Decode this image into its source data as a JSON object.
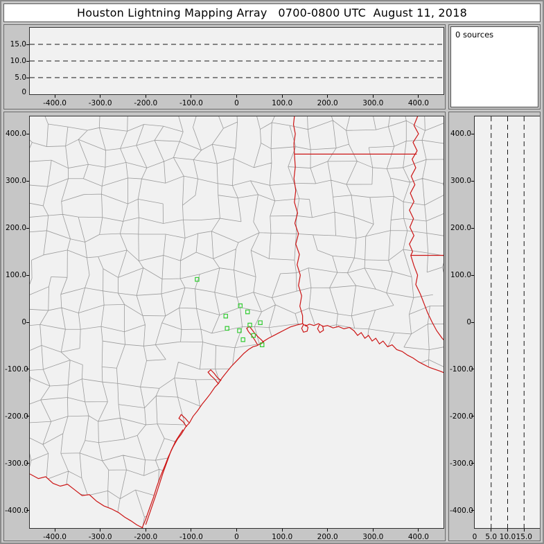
{
  "title": "Houston Lightning Mapping Array   0700-0800 UTC  August 11, 2018",
  "colors": {
    "window_bg": "#c6c6c6",
    "plot_bg": "#f1f1f1",
    "title_bg": "#ffffff",
    "sources_bg": "#ffffff",
    "county_line": "#9b9b9b",
    "state_line": "#cc1414",
    "station": "#33cc33",
    "dash_line": "#151515",
    "text": "#000000"
  },
  "sources_panel": {
    "label": "0 sources"
  },
  "chart_data": [
    {
      "name": "altitude-vs-east-west",
      "type": "scatter",
      "points": [],
      "xlim": [
        -455,
        455
      ],
      "ylim_km": [
        0,
        20
      ],
      "xlabel_ticks": {
        "values": [
          -400,
          -300,
          -200,
          -100,
          0,
          100,
          200,
          300,
          400
        ],
        "labels": [
          "-400.0",
          "-300.0",
          "-200.0",
          "-100.0",
          "0",
          "100.0",
          "200.0",
          "300.0",
          "400.0"
        ]
      },
      "altitude_gridlines": {
        "values": [
          5,
          10,
          15
        ],
        "labels": [
          "5.0",
          "10.0",
          "15.0"
        ]
      },
      "altitude_zero_label": "0",
      "grid": "dashed-horizontal",
      "legend": "none"
    },
    {
      "name": "plan-view-map",
      "type": "scatter",
      "points": [],
      "xlim": [
        -455,
        455
      ],
      "ylim": [
        -437,
        437
      ],
      "x_ticks": {
        "values": [
          -400,
          -300,
          -200,
          -100,
          0,
          100,
          200,
          300,
          400
        ],
        "labels": [
          "-400.0",
          "-300.0",
          "-200.0",
          "-100.0",
          "0",
          "100.0",
          "200.0",
          "300.0",
          "400.0"
        ]
      },
      "y_ticks": {
        "values": [
          400,
          300,
          200,
          100,
          0,
          -100,
          -200,
          -300,
          -400
        ],
        "labels": [
          "400.0",
          "300.0",
          "200.0",
          "100.0",
          "0",
          "-100.0",
          "-200.0",
          "-300.0",
          "-400.0"
        ]
      },
      "station_markers_km": [
        [
          -87,
          91
        ],
        [
          8,
          35
        ],
        [
          -24,
          13
        ],
        [
          24,
          22
        ],
        [
          -21,
          -13
        ],
        [
          6,
          -18
        ],
        [
          29,
          -6
        ],
        [
          52,
          -1
        ],
        [
          14,
          -37
        ],
        [
          37,
          -28
        ],
        [
          56,
          -48
        ]
      ],
      "map_features": [
        "county-boundaries",
        "state-borders",
        "gulf-coastline",
        "rivers"
      ]
    },
    {
      "name": "altitude-vs-north-south",
      "type": "scatter",
      "points": [],
      "xlim_km": [
        0,
        20
      ],
      "ylim": [
        -437,
        437
      ],
      "altitude_gridlines": {
        "values": [
          5,
          10,
          15
        ],
        "labels": [
          "5.0",
          "10.0",
          "15.0"
        ]
      },
      "altitude_zero_label": "0",
      "y_ticks": {
        "values": [
          400,
          300,
          200,
          100,
          0,
          -100,
          -200,
          -300,
          -400
        ],
        "labels": [
          "400.0",
          "300.0",
          "200.0",
          "100.0",
          "0",
          "-100.0",
          "-200.0",
          "-300.0",
          "-400.0"
        ]
      },
      "grid": "dashed-vertical",
      "legend": "none"
    },
    {
      "name": "source-count",
      "type": "table",
      "label": "0 sources"
    }
  ]
}
